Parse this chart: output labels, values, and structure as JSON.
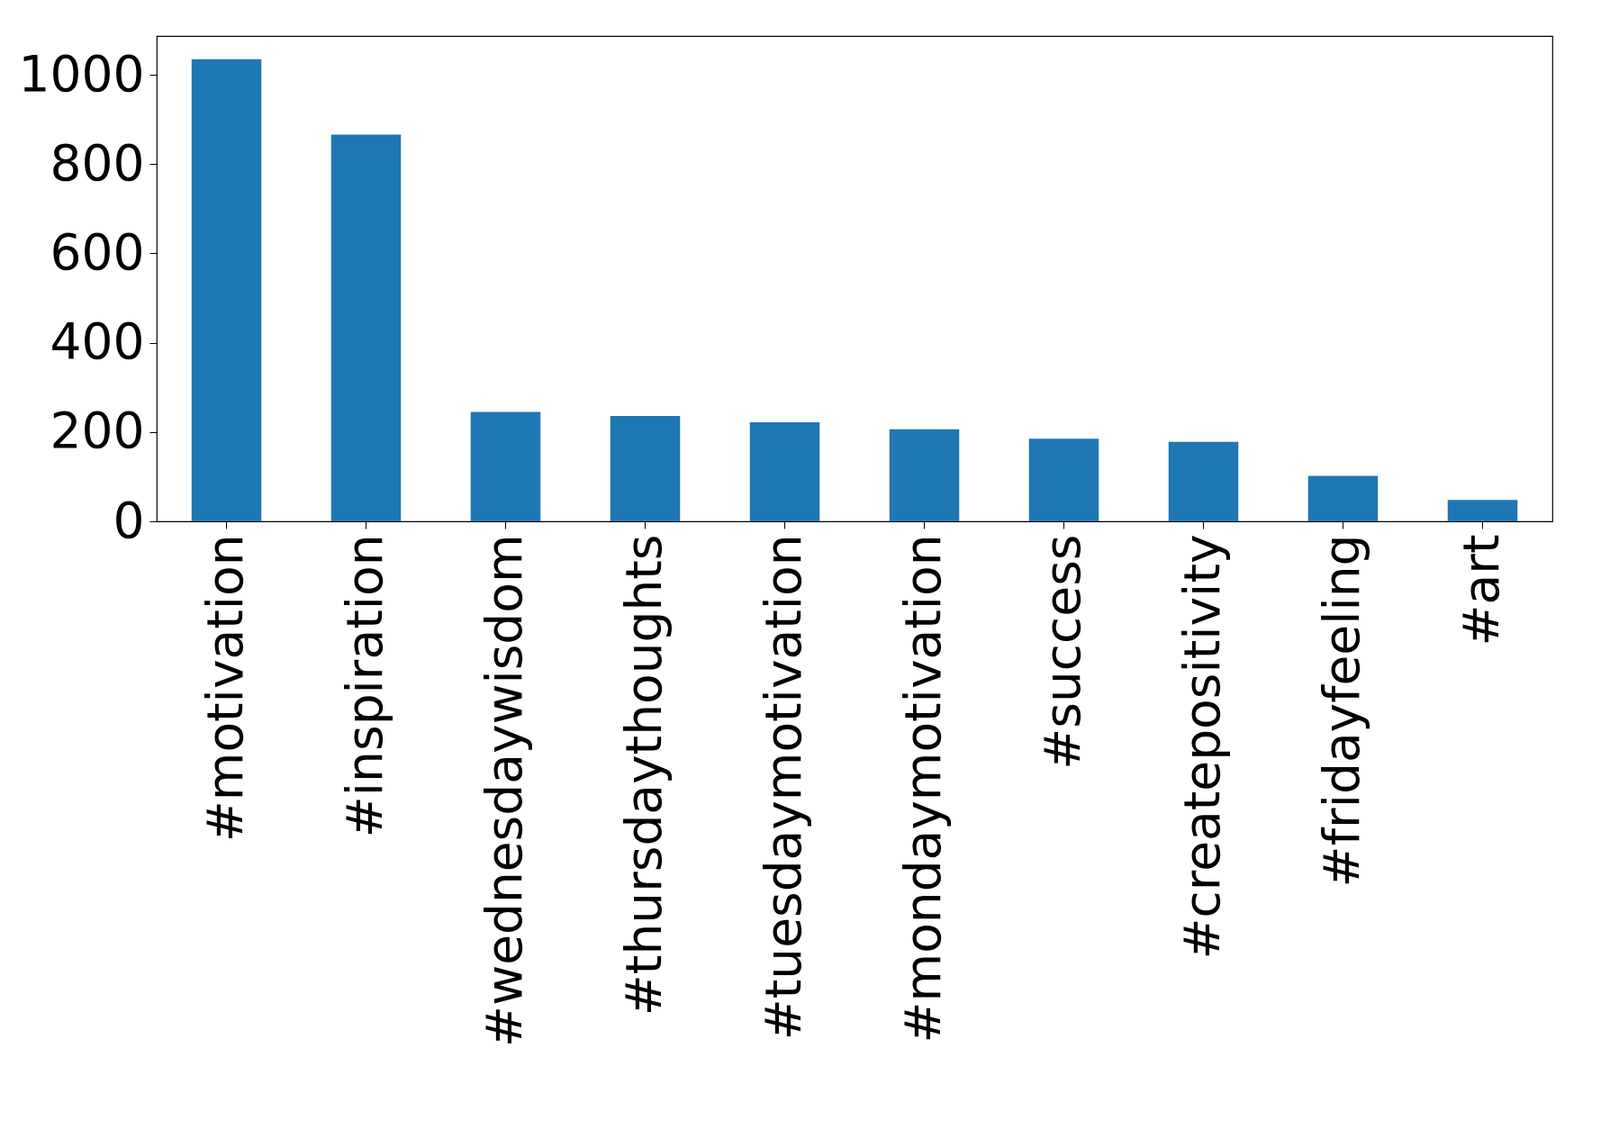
{
  "chart_data": {
    "type": "bar",
    "categories": [
      "#motivation",
      "#inspiration",
      "#wednesdaywisdom",
      "#thursdaythoughts",
      "#tuesdaymotivation",
      "#mondaymotivation",
      "#success",
      "#createpositivity",
      "#fridayfeeling",
      "#art"
    ],
    "values": [
      1035,
      866,
      245,
      236,
      222,
      206,
      185,
      178,
      102,
      48
    ],
    "color": "#1f77b4",
    "ylim": [
      0,
      1087
    ],
    "yticks": [
      0,
      200,
      400,
      600,
      800,
      1000
    ],
    "grid": false
  }
}
